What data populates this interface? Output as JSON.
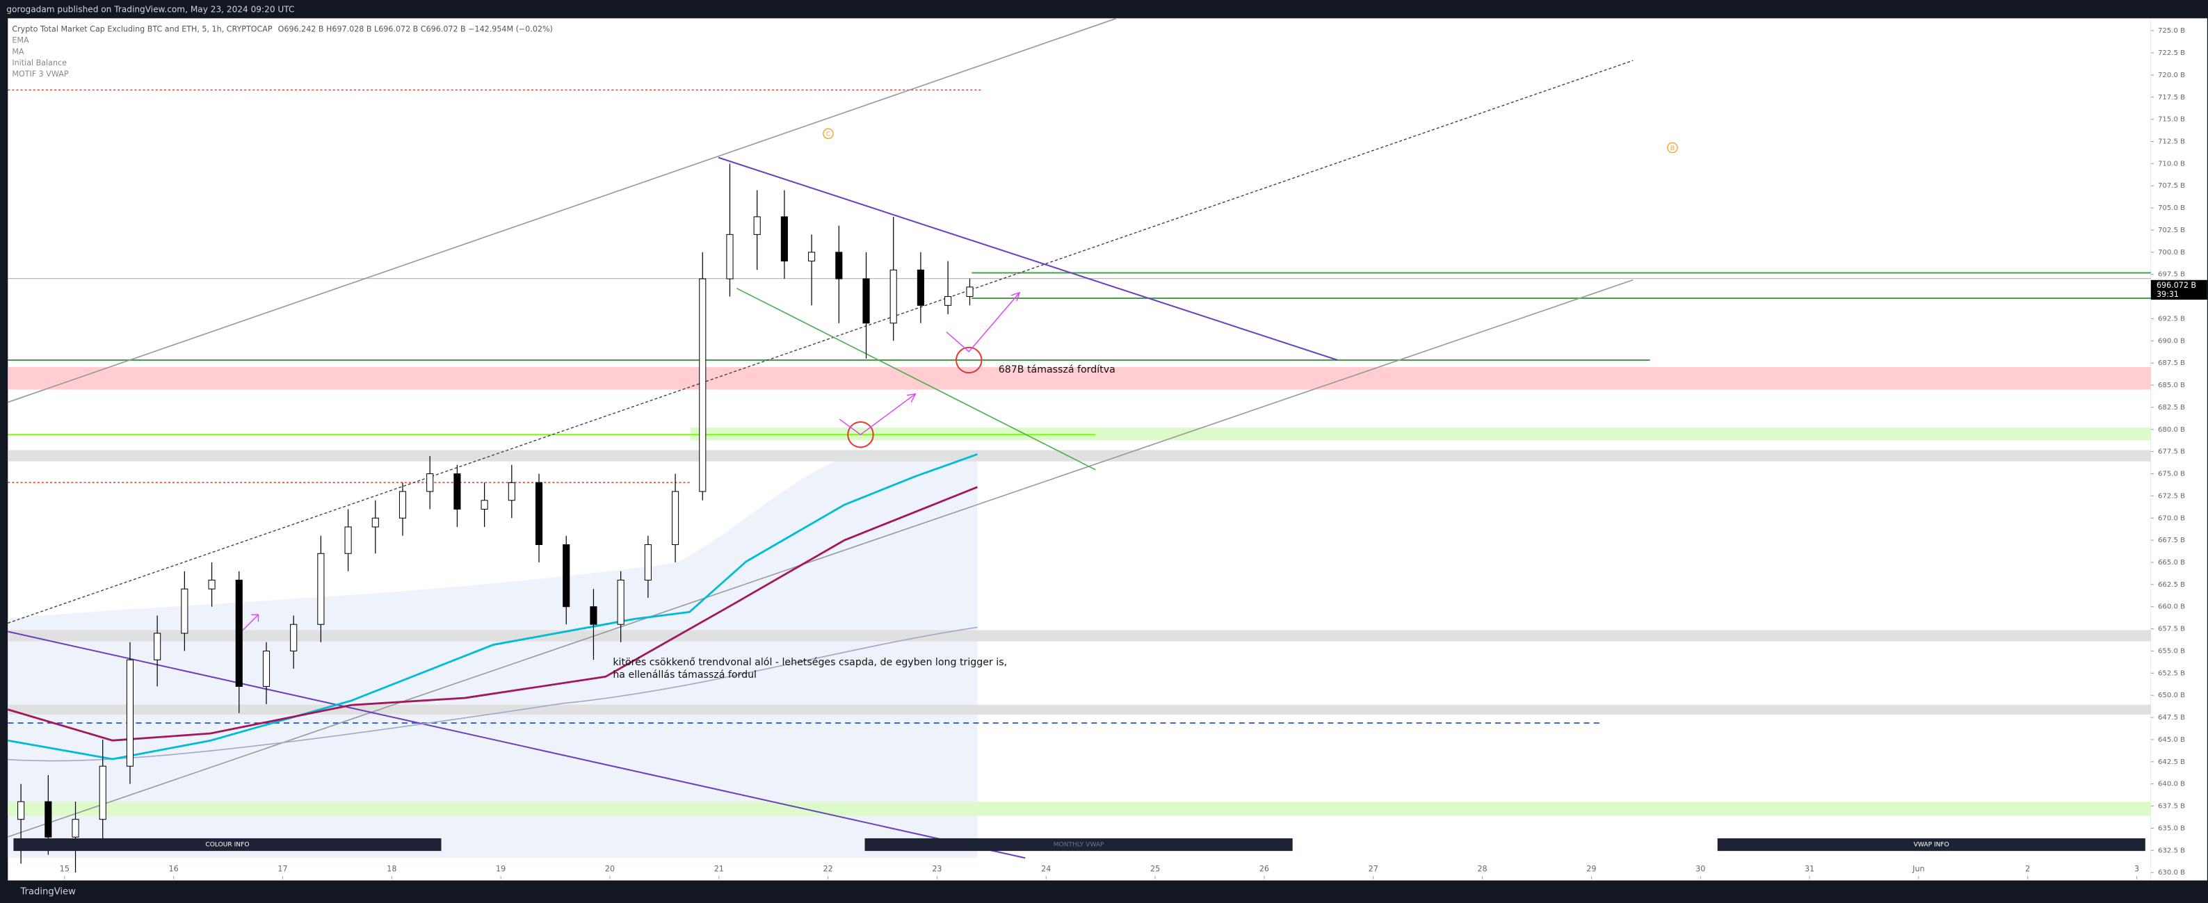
{
  "header": {
    "publisher": "gorogadam published on TradingView.com, May 23, 2024 09:20 UTC",
    "symbol": "Crypto Total Market Cap Excluding BTC and ETH, 5, 1h, CRYPTOCAP",
    "ohlc": "O696.242 B  H697.028 B  L696.072 B  C696.072 B  −142.954M (−0.02%)",
    "indicators": [
      "EMA",
      "MA",
      "Initial Balance",
      "MOTIF 3 VWAP"
    ]
  },
  "annotations": {
    "support": "687B támasszá fordítva",
    "breakout_1": "kitörés csökkenő trendvonal alól - lehetséges csapda, de egyben long trigger is,",
    "breakout_2": "ha ellenállás támasszá fordul",
    "marker_c": "C",
    "marker_b": "B"
  },
  "buttons": [
    "COLOUR INFO",
    "MONTHLY VWAP",
    "VWAP INFO"
  ],
  "price_tag": {
    "label": "696.072 B",
    "countdown": "39:31"
  },
  "footer": {
    "brand": "TradingView"
  },
  "chart_data": {
    "type": "candlestick",
    "x": [
      14.6,
      14.85,
      15.1,
      15.35,
      15.6,
      15.85,
      16.1,
      16.35,
      16.6,
      16.85,
      17.1,
      17.35,
      17.6,
      17.85,
      18.1,
      18.35,
      18.6,
      18.85,
      19.1,
      19.35,
      19.6,
      19.85,
      20.1,
      20.35,
      20.6,
      20.85,
      21.1,
      21.35,
      21.6,
      21.85,
      22.1,
      22.35,
      22.6,
      22.85,
      23.1,
      23.3
    ],
    "open": [
      636,
      638,
      634,
      636,
      642,
      654,
      657,
      662,
      663,
      651,
      655,
      658,
      666,
      669,
      670,
      673,
      675,
      671,
      672,
      674,
      667,
      660,
      658,
      663,
      667,
      673,
      697,
      702,
      704,
      699,
      700,
      697,
      692,
      698,
      694,
      695
    ],
    "high": [
      640,
      641,
      638,
      645,
      656,
      659,
      664,
      665,
      664,
      656,
      659,
      668,
      671,
      672,
      674,
      677,
      676,
      674,
      676,
      675,
      668,
      662,
      664,
      668,
      675,
      700,
      710,
      707,
      707,
      702,
      703,
      700,
      704,
      700,
      699,
      697.028
    ],
    "low": [
      631,
      632,
      630,
      633,
      640,
      651,
      655,
      660,
      648,
      649,
      653,
      656,
      664,
      666,
      668,
      671,
      669,
      669,
      670,
      665,
      658,
      654,
      656,
      661,
      665,
      672,
      695,
      698,
      697,
      694,
      692,
      688,
      690,
      692,
      693,
      694
    ],
    "close": [
      638,
      634,
      636,
      642,
      654,
      657,
      662,
      663,
      651,
      655,
      658,
      666,
      669,
      670,
      673,
      675,
      671,
      672,
      674,
      667,
      660,
      658,
      663,
      667,
      673,
      697,
      702,
      704,
      699,
      700,
      697,
      692,
      698,
      694,
      695,
      696.072
    ],
    "series": [
      {
        "name": "EMA",
        "color": "#00bcd4",
        "x": [
          14.48,
          15.44,
          16.34,
          17.63,
          18.93,
          20.22,
          20.73,
          21.25,
          22.15,
          22.8,
          23.37
        ],
        "values": [
          644.9,
          642.8,
          644.9,
          649.4,
          655.7,
          658.6,
          659.4,
          665.1,
          671.5,
          674.7,
          677.2
        ]
      },
      {
        "name": "MA",
        "color": "#a31858",
        "x": [
          14.48,
          15.44,
          16.34,
          17.63,
          18.67,
          19.96,
          21.12,
          22.15,
          23.37
        ],
        "values": [
          648.4,
          644.9,
          645.7,
          648.9,
          649.7,
          652.1,
          660.2,
          667.5,
          673.5
        ]
      }
    ],
    "xlim": [
      14.48,
      34.13
    ],
    "xticks": [
      15,
      16,
      17,
      18,
      19,
      20,
      21,
      22,
      23,
      24,
      25,
      26,
      27,
      28,
      29,
      30,
      31,
      {
        "value": 32,
        "label": "Jun"
      },
      {
        "value": 33,
        "label": "2"
      },
      {
        "value": 34,
        "label": "3"
      }
    ],
    "ylim": [
      629.1,
      726.4
    ],
    "yticks": [
      {
        "value": 725,
        "label": "725.0 B"
      },
      {
        "value": 722.5,
        "label": "722.5 B"
      },
      {
        "value": 720,
        "label": "720.0 B"
      },
      {
        "value": 717.5,
        "label": "717.5 B"
      },
      {
        "value": 715,
        "label": "715.0 B"
      },
      {
        "value": 712.5,
        "label": "712.5 B"
      },
      {
        "value": 710,
        "label": "710.0 B"
      },
      {
        "value": 707.5,
        "label": "707.5 B"
      },
      {
        "value": 705,
        "label": "705.0 B"
      },
      {
        "value": 702.5,
        "label": "702.5 B"
      },
      {
        "value": 700,
        "label": "700.0 B"
      },
      {
        "value": 697.5,
        "label": "697.5 B"
      },
      {
        "value": 692.5,
        "label": "692.5 B"
      },
      {
        "value": 690,
        "label": "690.0 B"
      },
      {
        "value": 687.5,
        "label": "687.5 B"
      },
      {
        "value": 685,
        "label": "685.0 B"
      },
      {
        "value": 682.5,
        "label": "682.5 B"
      },
      {
        "value": 680,
        "label": "680.0 B"
      },
      {
        "value": 677.5,
        "label": "677.5 B"
      },
      {
        "value": 675,
        "label": "675.0 B"
      },
      {
        "value": 672.5,
        "label": "672.5 B"
      },
      {
        "value": 670,
        "label": "670.0 B"
      },
      {
        "value": 667.5,
        "label": "667.5 B"
      },
      {
        "value": 665,
        "label": "665.0 B"
      },
      {
        "value": 662.5,
        "label": "662.5 B"
      },
      {
        "value": 660,
        "label": "660.0 B"
      },
      {
        "value": 657.5,
        "label": "657.5 B"
      },
      {
        "value": 655,
        "label": "655.0 B"
      },
      {
        "value": 652.5,
        "label": "652.5 B"
      },
      {
        "value": 650,
        "label": "650.0 B"
      },
      {
        "value": 647.5,
        "label": "647.5 B"
      },
      {
        "value": 645,
        "label": "645.0 B"
      },
      {
        "value": 642.5,
        "label": "642.5 B"
      },
      {
        "value": 640,
        "label": "640.0 B"
      },
      {
        "value": 637.5,
        "label": "637.5 B"
      },
      {
        "value": 635,
        "label": "635.0 B"
      },
      {
        "value": 632.5,
        "label": "632.5 B"
      },
      {
        "value": 630,
        "label": "630.0 B"
      }
    ],
    "up_color": "#ffffff",
    "down_color": "#000000",
    "grid": false
  }
}
